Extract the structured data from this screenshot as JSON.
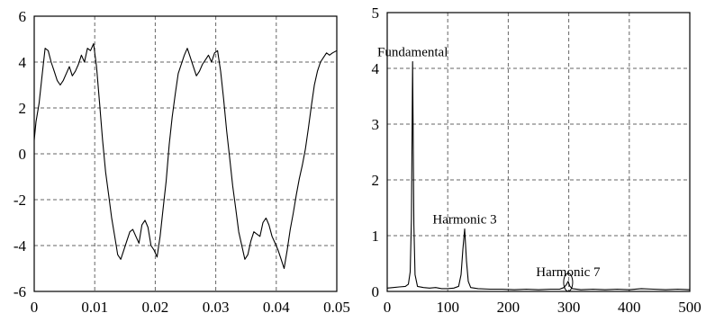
{
  "chart_data": [
    {
      "type": "line",
      "xlim": [
        0,
        0.05
      ],
      "ylim": [
        -6,
        6
      ],
      "xticks": [
        "0",
        "0.01",
        "0.02",
        "0.03",
        "0.04",
        "0.05"
      ],
      "yticks": [
        "6",
        "4",
        "2",
        "0",
        "-2",
        "-4",
        "-6"
      ],
      "grid": true,
      "series": [
        {
          "x": [
            0.0,
            0.0003,
            0.0008,
            0.0013,
            0.0018,
            0.0023,
            0.0028,
            0.0033,
            0.0038,
            0.0043,
            0.0048,
            0.0053,
            0.0058,
            0.0063,
            0.0068,
            0.0073,
            0.0078,
            0.0083,
            0.0088,
            0.0093,
            0.0098,
            0.0103,
            0.0108,
            0.0113,
            0.0118,
            0.0123,
            0.0128,
            0.0133,
            0.0138,
            0.0143,
            0.0148,
            0.0153,
            0.0158,
            0.0163,
            0.0168,
            0.0173,
            0.0178,
            0.0183,
            0.0188,
            0.0193,
            0.0198,
            0.0203,
            0.0208,
            0.0213,
            0.0218,
            0.0223,
            0.0228,
            0.0233,
            0.0238,
            0.0243,
            0.0248,
            0.0253,
            0.0258,
            0.0263,
            0.0268,
            0.0273,
            0.0278,
            0.0283,
            0.0288,
            0.0293,
            0.0298,
            0.0303,
            0.0308,
            0.0313,
            0.0318,
            0.0323,
            0.0328,
            0.0333,
            0.0338,
            0.0343,
            0.0348,
            0.0353,
            0.0358,
            0.0363,
            0.0368,
            0.0373,
            0.0378,
            0.0383,
            0.0388,
            0.0393,
            0.0398,
            0.0403,
            0.0408,
            0.0413,
            0.0418,
            0.0423,
            0.0428,
            0.0433,
            0.0438,
            0.0443,
            0.0448,
            0.0453,
            0.0458,
            0.0463,
            0.0468,
            0.0473,
            0.0478,
            0.0483,
            0.0488,
            0.0493,
            0.05
          ],
          "y": [
            0.6,
            1.4,
            2.2,
            3.4,
            4.6,
            4.5,
            4.0,
            3.6,
            3.2,
            3.0,
            3.2,
            3.5,
            3.8,
            3.4,
            3.6,
            3.9,
            4.3,
            4.0,
            4.6,
            4.5,
            4.8,
            3.8,
            2.2,
            0.6,
            -0.8,
            -1.8,
            -2.8,
            -3.6,
            -4.4,
            -4.6,
            -4.2,
            -3.8,
            -3.4,
            -3.3,
            -3.6,
            -3.9,
            -3.1,
            -2.9,
            -3.2,
            -4.0,
            -4.2,
            -4.5,
            -3.6,
            -2.4,
            -1.2,
            0.4,
            1.6,
            2.6,
            3.5,
            3.9,
            4.3,
            4.6,
            4.2,
            3.8,
            3.4,
            3.6,
            3.9,
            4.1,
            4.3,
            4.0,
            4.4,
            4.5,
            3.6,
            2.4,
            1.0,
            -0.2,
            -1.4,
            -2.4,
            -3.4,
            -4.0,
            -4.6,
            -4.4,
            -3.8,
            -3.4,
            -3.5,
            -3.6,
            -3.0,
            -2.8,
            -3.1,
            -3.6,
            -3.9,
            -4.2,
            -4.6,
            -5.0,
            -4.2,
            -3.3,
            -2.6,
            -1.8,
            -1.1,
            -0.5,
            0.2,
            1.1,
            2.1,
            3.0,
            3.6,
            4.0,
            4.2,
            4.4,
            4.3,
            4.4,
            4.5
          ]
        }
      ]
    },
    {
      "type": "line",
      "xlim": [
        0,
        500
      ],
      "ylim": [
        0,
        5
      ],
      "xticks": [
        "0",
        "100",
        "200",
        "300",
        "400",
        "500"
      ],
      "yticks": [
        "5",
        "4",
        "3",
        "2",
        "1",
        "0"
      ],
      "grid": true,
      "annotations": [
        {
          "text": "Fundamental",
          "x": 42,
          "y": 4.12
        },
        {
          "text": "Harmonic 3",
          "x": 128,
          "y": 1.12
        },
        {
          "text": "Harmonic 7",
          "x": 299,
          "y": 0.18
        }
      ],
      "series": [
        {
          "x": [
            0,
            10,
            20,
            30,
            35,
            38,
            40,
            42,
            44,
            46,
            50,
            60,
            70,
            80,
            90,
            100,
            110,
            118,
            122,
            125,
            128,
            131,
            134,
            138,
            150,
            170,
            190,
            210,
            230,
            250,
            270,
            285,
            292,
            296,
            299,
            302,
            306,
            320,
            340,
            360,
            380,
            400,
            420,
            440,
            460,
            480,
            500
          ],
          "y": [
            0.06,
            0.07,
            0.08,
            0.09,
            0.13,
            0.35,
            1.3,
            4.12,
            1.2,
            0.3,
            0.09,
            0.07,
            0.06,
            0.07,
            0.05,
            0.05,
            0.06,
            0.09,
            0.3,
            0.75,
            1.12,
            0.55,
            0.18,
            0.07,
            0.05,
            0.04,
            0.04,
            0.03,
            0.04,
            0.03,
            0.04,
            0.04,
            0.07,
            0.12,
            0.18,
            0.09,
            0.05,
            0.03,
            0.04,
            0.03,
            0.04,
            0.03,
            0.05,
            0.04,
            0.03,
            0.04,
            0.03
          ]
        }
      ]
    }
  ]
}
